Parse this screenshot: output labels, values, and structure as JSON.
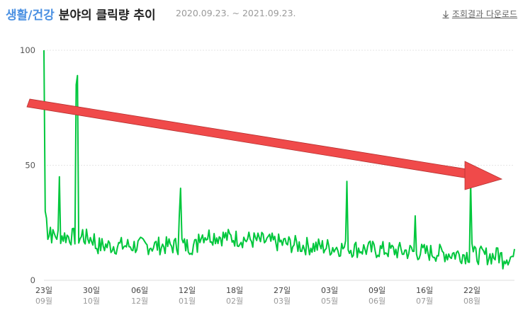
{
  "header": {
    "category": "생활/건강",
    "title_rest": "분야의 클릭량 추이",
    "period": "2020.09.23. ~ 2021.09.23.",
    "download_label": "조회결과 다운로드",
    "download_icon": "download-arrow-icon"
  },
  "colors": {
    "category": "#4a90e2",
    "line": "#00c73c",
    "arrow": "#f04a4a",
    "grid": "#e6e6e6"
  },
  "chart_data": {
    "type": "line",
    "title": "생활/건강 분야의 클릭량 추이",
    "y_ticks": [
      0,
      50,
      100
    ],
    "ylim": [
      0,
      100
    ],
    "x_ticks": [
      {
        "day": "23일",
        "month": "09월"
      },
      {
        "day": "30일",
        "month": "10월"
      },
      {
        "day": "06일",
        "month": "12월"
      },
      {
        "day": "12일",
        "month": "01월"
      },
      {
        "day": "18일",
        "month": "02월"
      },
      {
        "day": "27일",
        "month": "03월"
      },
      {
        "day": "03일",
        "month": "05월"
      },
      {
        "day": "09일",
        "month": "06월"
      },
      {
        "day": "16일",
        "month": "07월"
      },
      {
        "day": "22일",
        "month": "08월"
      }
    ],
    "x_tick_positions": [
      0,
      0.115,
      0.232,
      0.347,
      0.462,
      0.577,
      0.692,
      0.807,
      0.922,
      1.037
    ],
    "series": [
      {
        "values": []
      }
    ],
    "grid": "horizontal dashed",
    "trend_arrow": "downward trend annotation"
  }
}
